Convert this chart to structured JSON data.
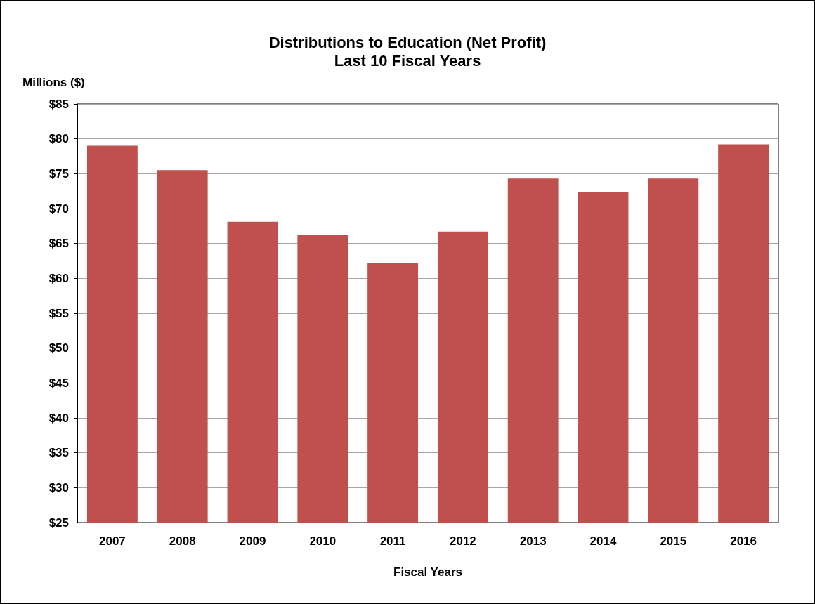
{
  "chart_data": {
    "type": "bar",
    "title": "Distributions to Education (Net Profit)",
    "subtitle": "Last 10 Fiscal Years",
    "ylabel": "Millions ($)",
    "xlabel": "Fiscal Years",
    "categories": [
      "2007",
      "2008",
      "2009",
      "2010",
      "2011",
      "2012",
      "2013",
      "2014",
      "2015",
      "2016"
    ],
    "values": [
      79.0,
      75.5,
      68.1,
      66.2,
      62.2,
      66.7,
      74.3,
      72.4,
      74.3,
      79.2
    ],
    "color": "#c0504d",
    "ylim": [
      25,
      85
    ],
    "yticks": [
      {
        "value": 25,
        "label": "$25"
      },
      {
        "value": 30,
        "label": "$30"
      },
      {
        "value": 35,
        "label": "$35"
      },
      {
        "value": 40,
        "label": "$40"
      },
      {
        "value": 45,
        "label": "$45"
      },
      {
        "value": 50,
        "label": "$50"
      },
      {
        "value": 55,
        "label": "$55"
      },
      {
        "value": 60,
        "label": "$60"
      },
      {
        "value": 65,
        "label": "$65"
      },
      {
        "value": 70,
        "label": "$70"
      },
      {
        "value": 75,
        "label": "$75"
      },
      {
        "value": 80,
        "label": "$80"
      },
      {
        "value": 85,
        "label": "$85"
      }
    ],
    "grid": "y"
  }
}
